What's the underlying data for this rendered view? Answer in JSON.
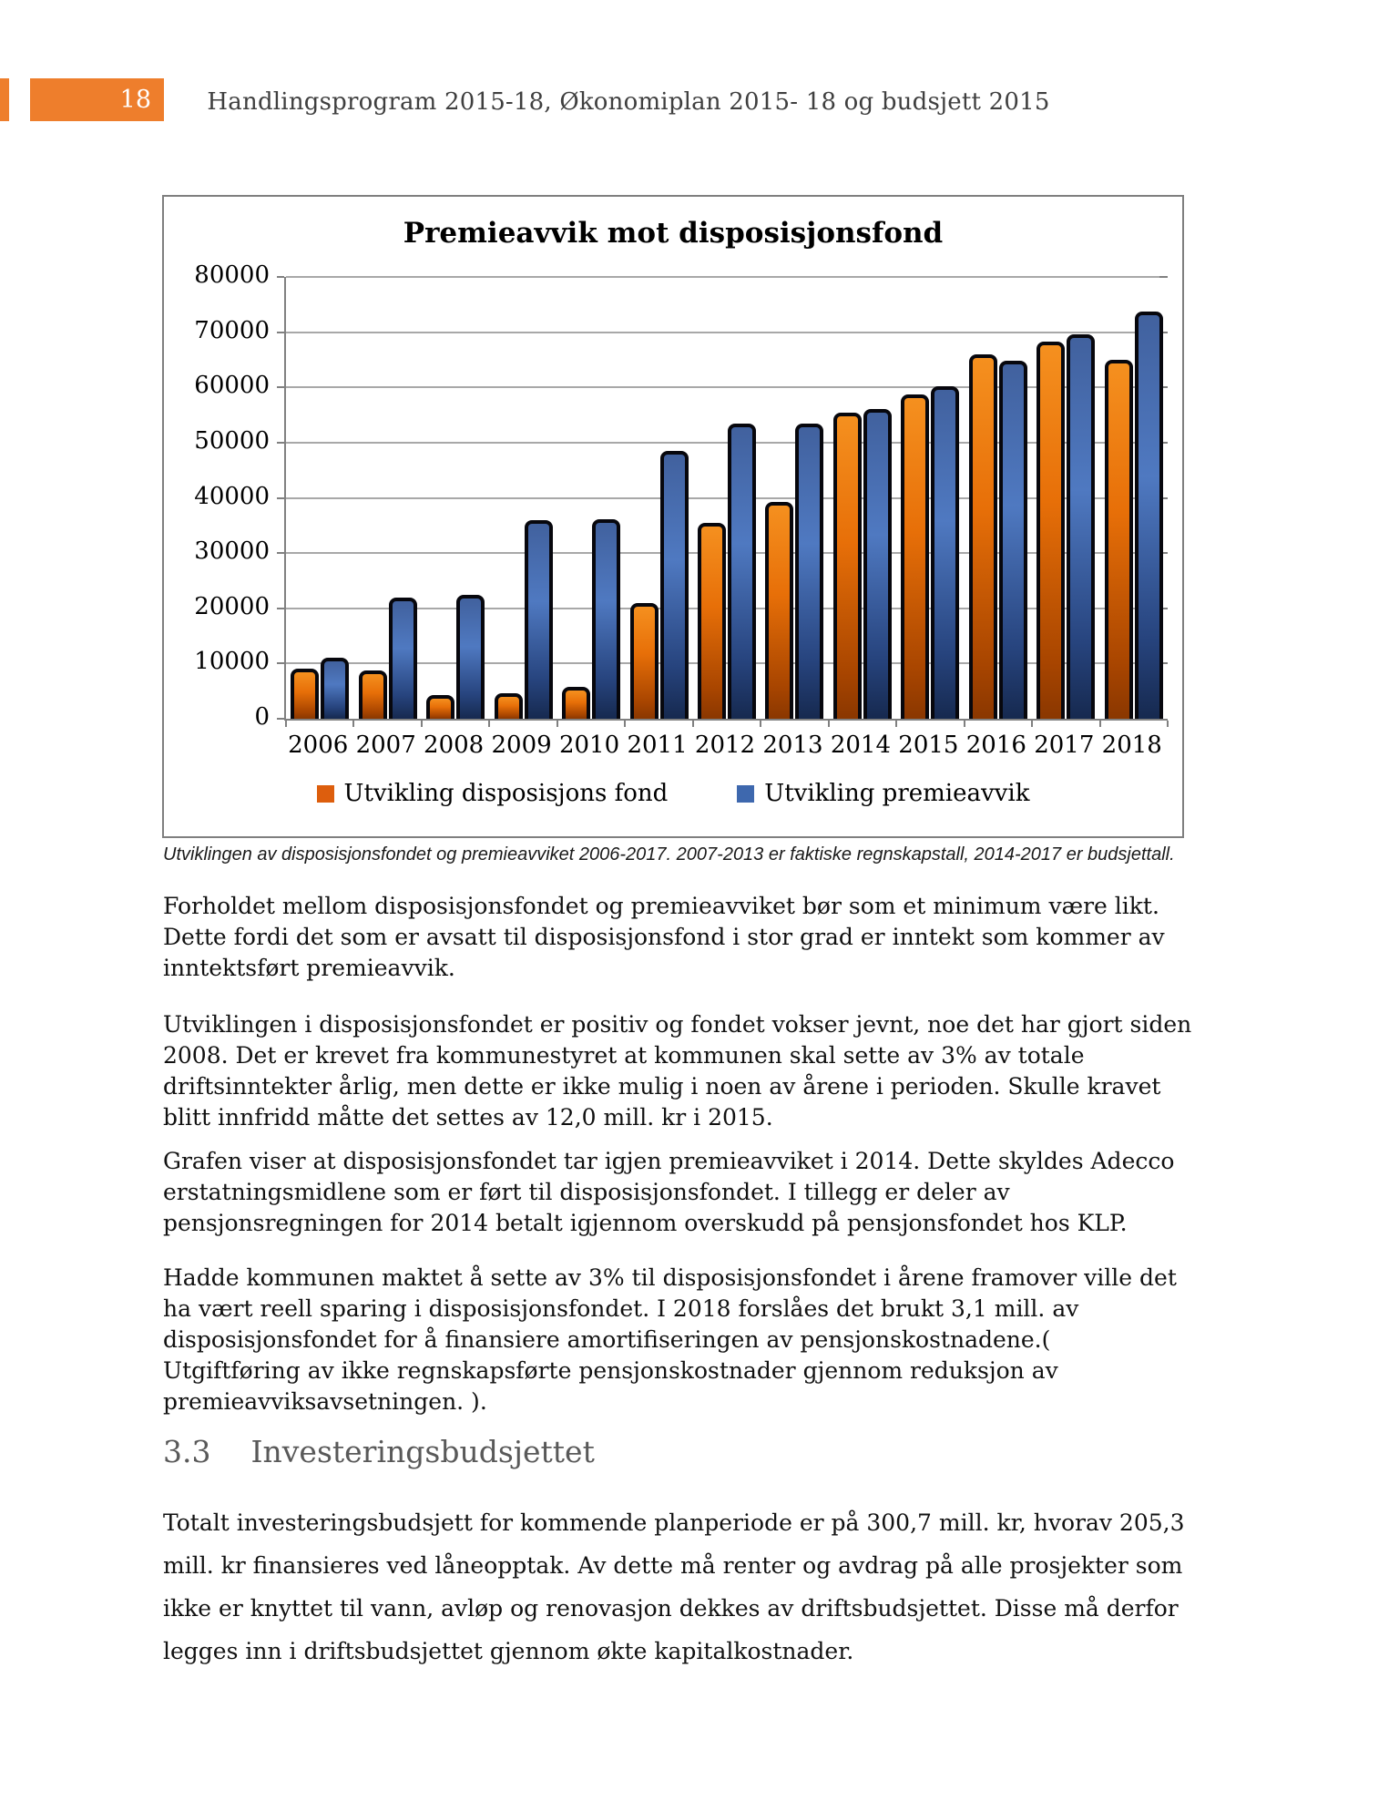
{
  "page": {
    "number": "18",
    "header_title": "Handlingsprogram 2015-18, Økonomiplan 2015- 18 og budsjett 2015",
    "accent_color": "#ee7e2c"
  },
  "chart": {
    "caption": "Utviklingen av disposisjonsfondet og premieavviket 2006-2017. 2007-2013 er faktiske regnskapstall, 2014-2017 er budsjettall."
  },
  "chart_data": {
    "type": "bar",
    "title": "Premieavvik mot disposisjonsfond",
    "categories": [
      "2006",
      "2007",
      "2008",
      "2009",
      "2010",
      "2011",
      "2012",
      "2013",
      "2014",
      "2015",
      "2016",
      "2017",
      "2018"
    ],
    "series": [
      {
        "name": "Utvikling disposisjons fond",
        "color": "#dd5e0d",
        "values": [
          9000,
          8800,
          4300,
          4700,
          5700,
          21000,
          35500,
          39300,
          55500,
          58800,
          66000,
          68300,
          65000
        ]
      },
      {
        "name": "Utvikling premieavvik",
        "color": "#3e68ae",
        "values": [
          11000,
          22000,
          22500,
          36000,
          36200,
          48500,
          53500,
          53500,
          56000,
          60200,
          64900,
          69600,
          73800
        ]
      }
    ],
    "ylim": [
      0,
      80000
    ],
    "ytick_step": 10000,
    "grid": true,
    "legend_position": "bottom"
  },
  "body": {
    "paragraphs": [
      "Forholdet mellom disposisjonsfondet og premieavviket bør som et minimum være likt. Dette fordi det som er avsatt til disposisjonsfond i stor grad er inntekt som kommer av inntektsført premieavvik.",
      "Utviklingen i disposisjonsfondet er positiv og fondet vokser jevnt, noe det har gjort siden 2008. Det er krevet fra kommunestyret at kommunen skal sette av 3% av totale driftsinntekter årlig, men dette er ikke mulig i noen av årene i perioden. Skulle kravet blitt innfridd måtte det settes av 12,0 mill. kr i 2015.",
      "Grafen viser at disposisjonsfondet tar igjen premieavviket i 2014. Dette skyldes Adecco erstatningsmidlene som er ført til disposisjonsfondet. I tillegg er deler av pensjonsregningen for 2014 betalt igjennom overskudd på pensjonsfondet hos KLP.",
      "Hadde kommunen maktet å sette av 3% til disposisjonsfondet i årene framover ville det ha vært reell sparing i disposisjonsfondet. I 2018 forslåes det brukt 3,1 mill. av disposisjonsfondet for å finansiere amortifiseringen av pensjonskostnadene.( Utgiftføring av ikke regnskapsførte pensjonskostnader gjennom reduksjon av premieavviksavsetningen. )."
    ],
    "section": {
      "number": "3.3",
      "title": "Investeringsbudsjettet"
    },
    "closing_paragraph": "Totalt investeringsbudsjett for kommende planperiode er på 300,7 mill. kr, hvorav 205,3 mill. kr finansieres ved låneopptak. Av dette må renter og avdrag på alle prosjekter som ikke er knyttet til vann, avløp og renovasjon dekkes av driftsbudsjettet. Disse må derfor legges inn i driftsbudsjettet  gjennom økte kapitalkostnader."
  }
}
